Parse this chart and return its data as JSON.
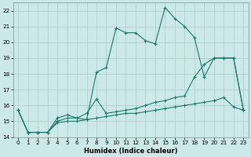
{
  "xlabel": "Humidex (Indice chaleur)",
  "bg_color": "#cce8e8",
  "grid_color": "#aacccc",
  "line_color": "#1a7a6a",
  "xlim": [
    -0.5,
    23.5
  ],
  "ylim": [
    14,
    22.5
  ],
  "xticks": [
    0,
    1,
    2,
    3,
    4,
    5,
    6,
    7,
    8,
    9,
    10,
    11,
    12,
    13,
    14,
    15,
    16,
    17,
    18,
    19,
    20,
    21,
    22,
    23
  ],
  "yticks": [
    14,
    15,
    16,
    17,
    18,
    19,
    20,
    21,
    22
  ],
  "series": [
    {
      "x": [
        0,
        1,
        2,
        3,
        4,
        5,
        6,
        7,
        8,
        9,
        10,
        11,
        12,
        13,
        14,
        15,
        16,
        17,
        18,
        19,
        20,
        21,
        22,
        23
      ],
      "y": [
        15.7,
        14.3,
        14.3,
        14.3,
        15.2,
        15.4,
        15.2,
        15.1,
        18.1,
        18.4,
        20.9,
        20.6,
        20.6,
        20.1,
        19.9,
        22.2,
        21.5,
        21.0,
        20.3,
        17.8,
        19.0,
        19.0,
        19.0,
        15.7
      ]
    },
    {
      "x": [
        0,
        1,
        2,
        3,
        4,
        5,
        6,
        7,
        8,
        9,
        10,
        11,
        12,
        13,
        14,
        15,
        16,
        17,
        18,
        19,
        20,
        21,
        22,
        23
      ],
      "y": [
        15.7,
        14.3,
        14.3,
        14.3,
        15.0,
        15.2,
        15.2,
        15.5,
        16.4,
        15.5,
        15.6,
        15.7,
        15.8,
        16.0,
        16.2,
        16.3,
        16.5,
        16.6,
        17.8,
        18.6,
        19.0,
        19.0,
        19.0,
        15.7
      ]
    },
    {
      "x": [
        0,
        1,
        2,
        3,
        4,
        5,
        6,
        7,
        8,
        9,
        10,
        11,
        12,
        13,
        14,
        15,
        16,
        17,
        18,
        19,
        20,
        21,
        22,
        23
      ],
      "y": [
        15.7,
        14.3,
        14.3,
        14.3,
        14.9,
        15.0,
        15.0,
        15.1,
        15.2,
        15.3,
        15.4,
        15.5,
        15.5,
        15.6,
        15.7,
        15.8,
        15.9,
        16.0,
        16.1,
        16.2,
        16.3,
        16.5,
        15.9,
        15.7
      ]
    }
  ]
}
